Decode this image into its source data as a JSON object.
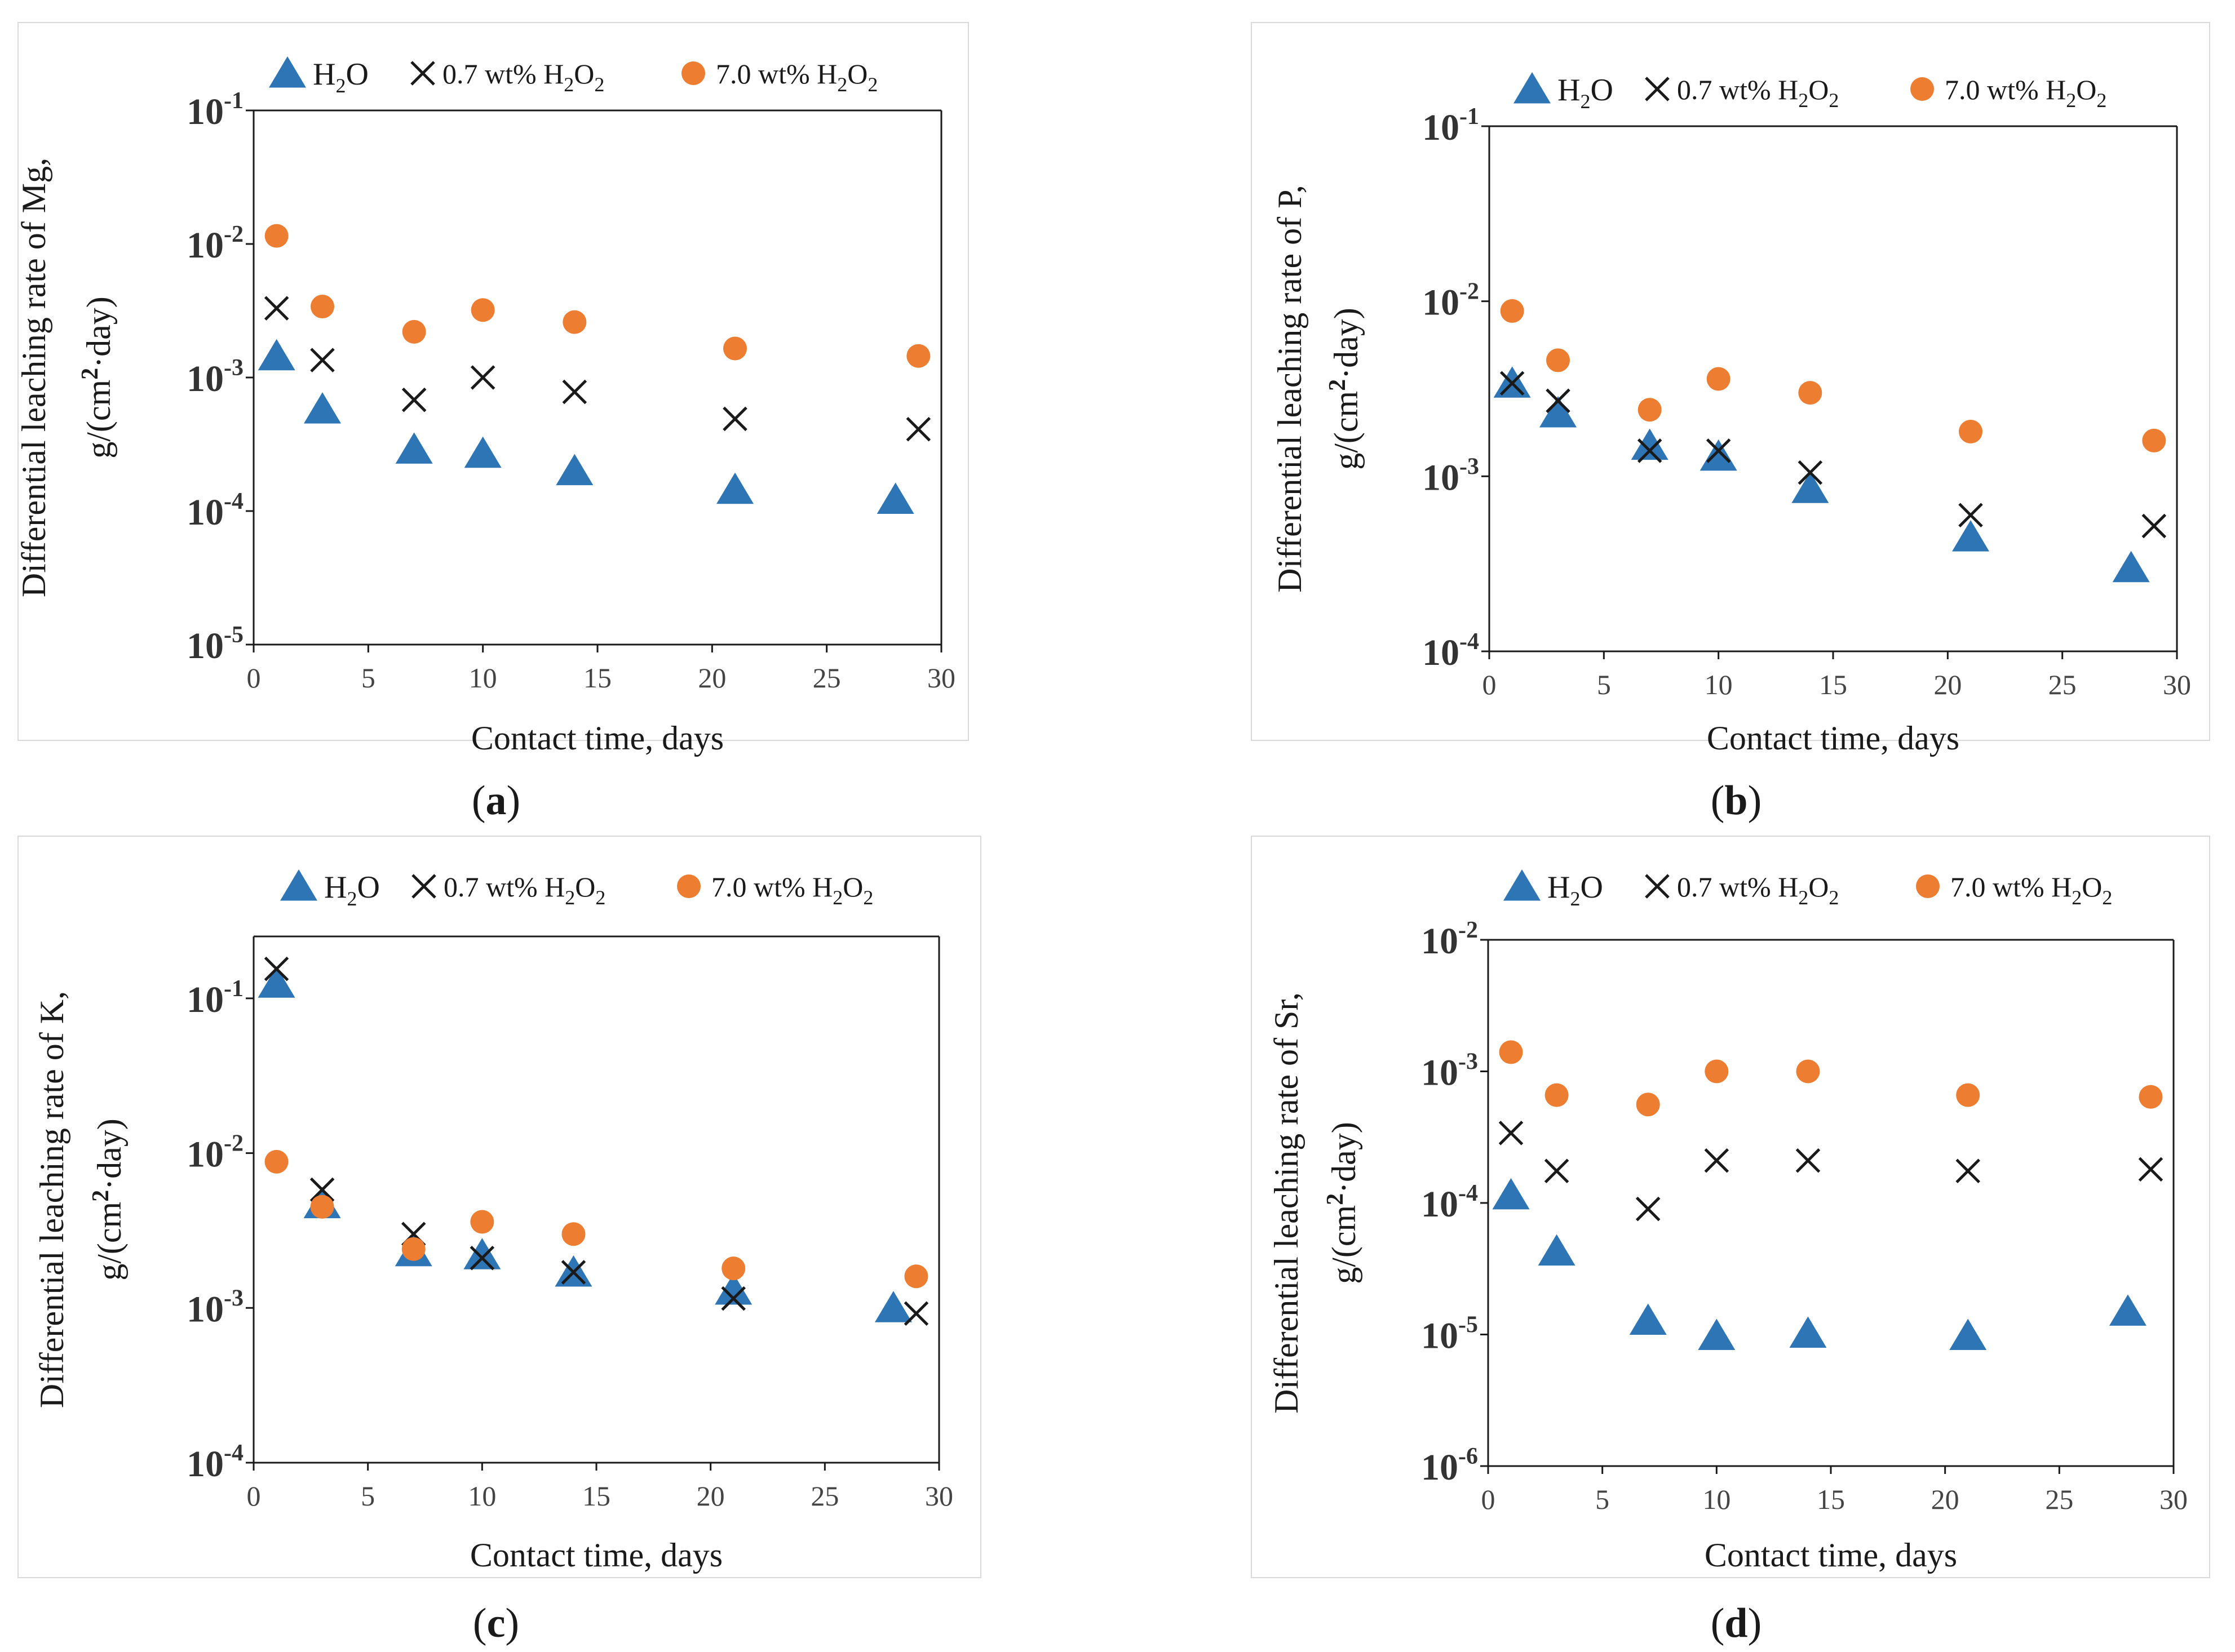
{
  "colors": {
    "h2o": "#2e75b6",
    "h2o2_low": "#1a1a1a",
    "h2o2_high": "#ed7d31"
  },
  "legend": {
    "h2o": "H2O",
    "h2o2_low": "0.7 wt% H2O2",
    "h2o2_high": "7.0 wt% H2O2"
  },
  "chart_data": [
    {
      "type": "scatter",
      "panel": "a",
      "caption": "(a)",
      "ylabel_line1": "Differential leaching rate of Mg,",
      "ylabel_line2": "g/(cm2·day)",
      "xlabel": "Contact time, days",
      "xlim": [
        0,
        30
      ],
      "xticks": [
        "0",
        "5",
        "10",
        "15",
        "20",
        "25",
        "30"
      ],
      "yscale": "log",
      "ylim_exp": [
        -5,
        -1
      ],
      "yticks": [
        "10-5",
        "10-4",
        "10-3",
        "10-2",
        "10-1"
      ],
      "series": [
        {
          "name": "H2O",
          "marker": "triangle",
          "x": [
            1,
            3,
            7,
            10,
            14,
            21,
            28
          ],
          "y": [
            0.00145,
            0.00058,
            0.00029,
            0.00027,
            0.0002,
            0.000145,
            0.000122
          ]
        },
        {
          "name": "0.7 wt% H2O2",
          "marker": "x",
          "x": [
            1,
            3,
            7,
            10,
            14,
            21,
            29
          ],
          "y": [
            0.0033,
            0.00135,
            0.00068,
            0.001,
            0.00078,
            0.00049,
            0.00041
          ]
        },
        {
          "name": "7.0 wt% H2O2",
          "marker": "circle",
          "x": [
            1,
            3,
            7,
            10,
            14,
            21,
            29
          ],
          "y": [
            0.0115,
            0.0034,
            0.0022,
            0.0032,
            0.0026,
            0.00165,
            0.00145
          ]
        }
      ]
    },
    {
      "type": "scatter",
      "panel": "b",
      "caption": "(b)",
      "ylabel_line1": "Differential leaching rate of P,",
      "ylabel_line2": "g/(cm2·day)",
      "xlabel": "Contact time, days",
      "xlim": [
        0,
        30
      ],
      "xticks": [
        "0",
        "5",
        "10",
        "15",
        "20",
        "25",
        "30"
      ],
      "yscale": "log",
      "ylim_exp": [
        -4,
        -1
      ],
      "yticks": [
        "10-4",
        "10-3",
        "10-2",
        "10-1"
      ],
      "series": [
        {
          "name": "H2O",
          "marker": "triangle",
          "x": [
            1,
            3,
            7,
            10,
            14,
            21,
            28
          ],
          "y": [
            0.0034,
            0.0023,
            0.0015,
            0.0013,
            0.00085,
            0.00045,
            0.0003
          ]
        },
        {
          "name": "0.7 wt% H2O2",
          "marker": "x",
          "x": [
            1,
            3,
            7,
            10,
            14,
            21,
            29
          ],
          "y": [
            0.0034,
            0.0027,
            0.0014,
            0.0014,
            0.00105,
            0.0006,
            0.00052
          ]
        },
        {
          "name": "7.0 wt% H2O2",
          "marker": "circle",
          "x": [
            1,
            3,
            7,
            10,
            14,
            21,
            29
          ],
          "y": [
            0.0088,
            0.0046,
            0.0024,
            0.0036,
            0.003,
            0.0018,
            0.0016
          ]
        }
      ]
    },
    {
      "type": "scatter",
      "panel": "c",
      "caption": "(c)",
      "ylabel_line1": "Differential leaching rate of K,",
      "ylabel_line2": "g/(cm2·day)",
      "xlabel": "Contact time, days",
      "xlim": [
        0,
        30
      ],
      "xticks": [
        "0",
        "5",
        "10",
        "15",
        "20",
        "25",
        "30"
      ],
      "yscale": "log",
      "ylim_exp": [
        -4,
        -0.6
      ],
      "yticks": [
        "10-4",
        "10-3",
        "10-2",
        "10-1"
      ],
      "series": [
        {
          "name": "H2O",
          "marker": "triangle",
          "x": [
            1,
            3,
            7,
            10,
            14,
            21,
            28
          ],
          "y": [
            0.125,
            0.0047,
            0.0023,
            0.0022,
            0.0017,
            0.0013,
            0.001
          ]
        },
        {
          "name": "0.7 wt% H2O2",
          "marker": "x",
          "x": [
            1,
            3,
            7,
            10,
            14,
            21,
            29
          ],
          "y": [
            0.155,
            0.0058,
            0.003,
            0.0021,
            0.0017,
            0.00115,
            0.00092
          ]
        },
        {
          "name": "7.0 wt% H2O2",
          "marker": "circle",
          "x": [
            1,
            3,
            7,
            10,
            14,
            21,
            29
          ],
          "y": [
            0.0088,
            0.0045,
            0.0024,
            0.0036,
            0.003,
            0.0018,
            0.0016
          ]
        }
      ]
    },
    {
      "type": "scatter",
      "panel": "d",
      "caption": "(d)",
      "ylabel_line1": "Differential leaching rate of Sr,",
      "ylabel_line2": "g/(cm2·day)",
      "xlabel": "Contact time, days",
      "xlim": [
        0,
        30
      ],
      "xticks": [
        "0",
        "5",
        "10",
        "15",
        "20",
        "25",
        "30"
      ],
      "yscale": "log",
      "ylim_exp": [
        -6,
        -2
      ],
      "yticks": [
        "10-6",
        "10-5",
        "10-4",
        "10-3",
        "10-2"
      ],
      "series": [
        {
          "name": "H2O",
          "marker": "triangle",
          "x": [
            1,
            3,
            7,
            10,
            14,
            21,
            28
          ],
          "y": [
            0.000115,
            4.3e-05,
            1.28e-05,
            9.8e-06,
            1.02e-05,
            9.8e-06,
            1.5e-05
          ]
        },
        {
          "name": "0.7 wt% H2O2",
          "marker": "x",
          "x": [
            1,
            3,
            7,
            10,
            14,
            21,
            29
          ],
          "y": [
            0.00034,
            0.000175,
            9e-05,
            0.00021,
            0.00021,
            0.000175,
            0.00018
          ]
        },
        {
          "name": "7.0 wt% H2O2",
          "marker": "circle",
          "x": [
            1,
            3,
            7,
            10,
            14,
            21,
            29
          ],
          "y": [
            0.0014,
            0.00066,
            0.00056,
            0.001,
            0.001,
            0.00066,
            0.00064
          ]
        }
      ]
    }
  ]
}
